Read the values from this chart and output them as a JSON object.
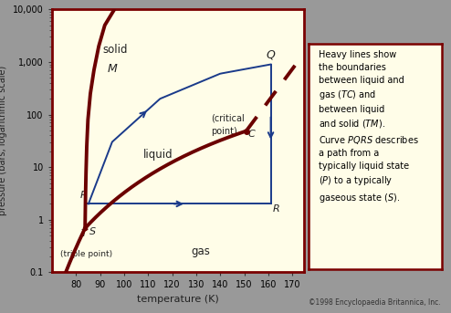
{
  "xlabel": "temperature (K)",
  "ylabel": "pressure (bars, logarithmic scale)",
  "xlim": [
    70,
    175
  ],
  "ylim_log": [
    0.1,
    10000
  ],
  "bg_color": "#FFFDE8",
  "outer_bg": "#999999",
  "border_color": "#7A0000",
  "text_color": "#222222",
  "phase_line_color": "#6B0000",
  "path_color": "#1A3A8A",
  "triple_T": 83.8,
  "triple_P": 0.689,
  "critical_T": 150.8,
  "critical_P": 48.7,
  "copyright_text": "©1998 Encyclopaedia Britannica, Inc."
}
